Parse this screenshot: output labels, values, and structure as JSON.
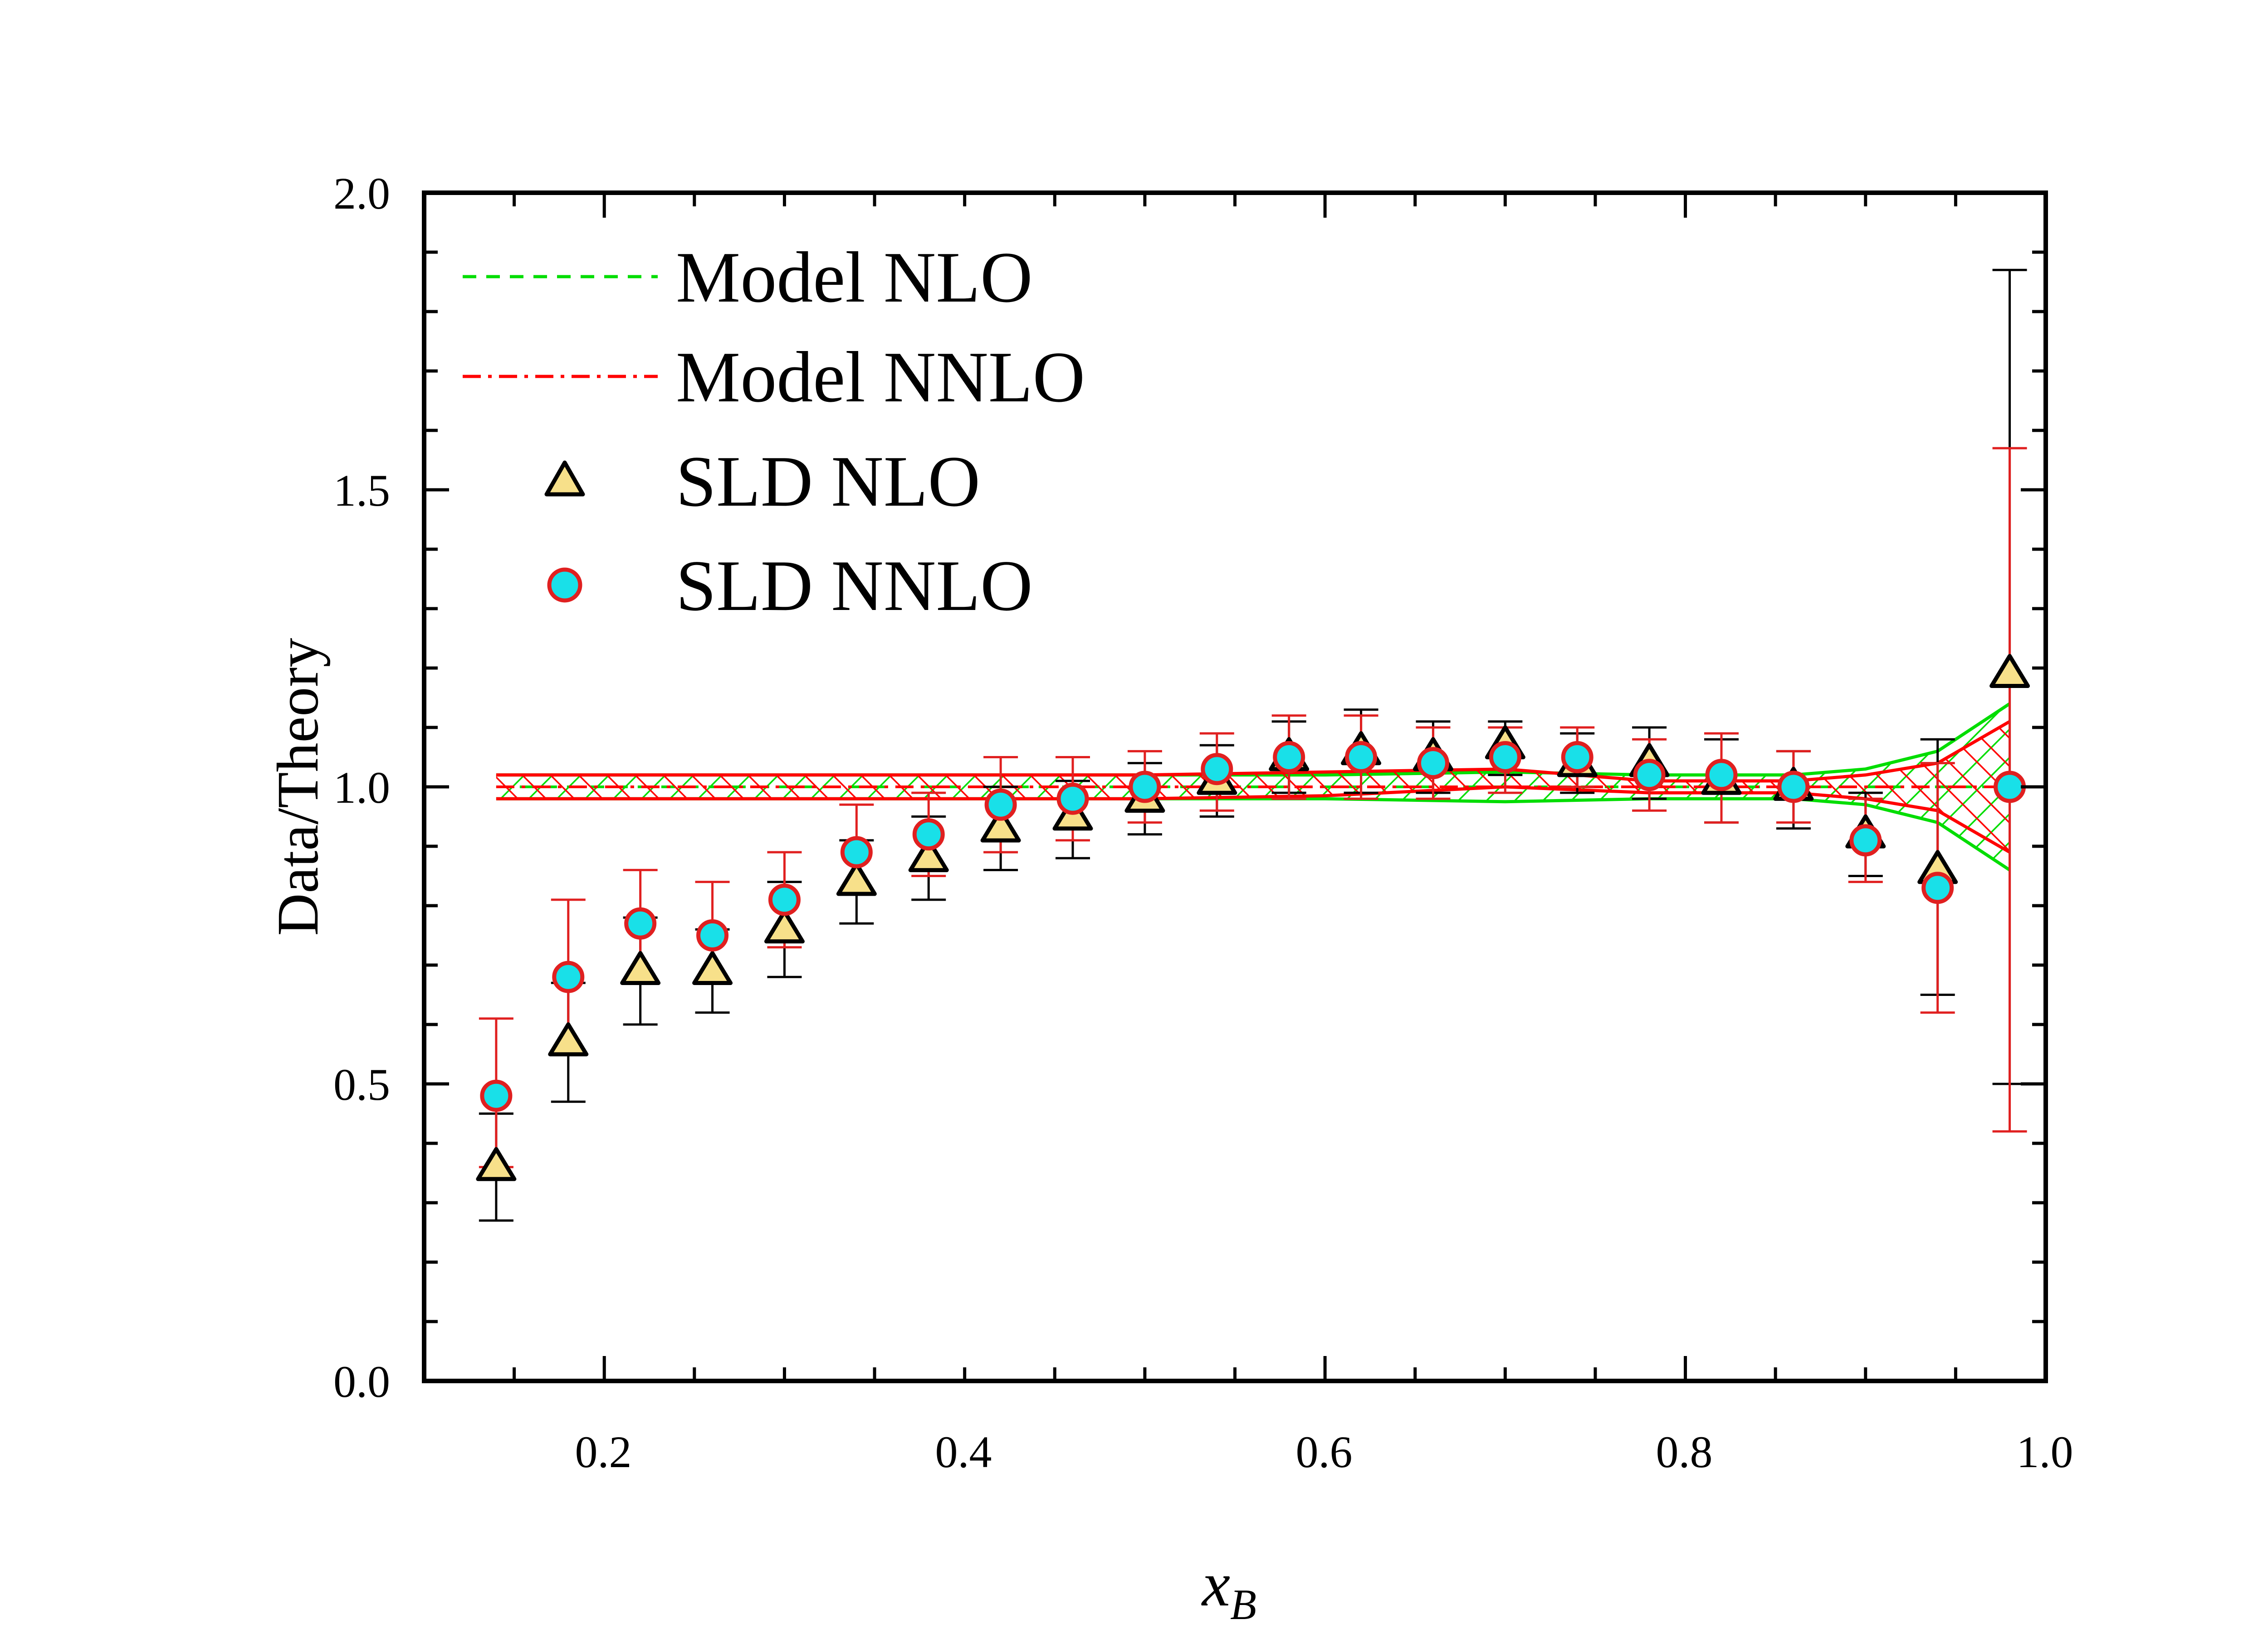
{
  "chart_data": {
    "type": "scatter",
    "xlabel": "x",
    "xlabel_sub": "B",
    "ylabel": "Data/Theory",
    "xlim": [
      0.1,
      1.0
    ],
    "ylim": [
      0.0,
      2.0
    ],
    "xticks": [
      0.2,
      0.4,
      0.6,
      0.8,
      1.0
    ],
    "xtick_labels": [
      "0.2",
      "0.4",
      "0.6",
      "0.8",
      "1.0"
    ],
    "yticks": [
      0.0,
      0.5,
      1.0,
      1.5,
      2.0
    ],
    "ytick_labels": [
      "0.0",
      "0.5",
      "1.0",
      "1.5",
      "2.0"
    ],
    "legend": [
      "Model NLO",
      "Model NNLO",
      "SLD NLO",
      "SLD NNLO"
    ],
    "legend_position": "top-left",
    "colors": {
      "nlo_band": "#00dd00",
      "nnlo_band": "#ff0000",
      "nlo_marker_fill": "#f7e08a",
      "nlo_marker_edge": "#000000",
      "nnlo_marker_fill": "#19e0e8",
      "nnlo_marker_edge": "#e02020",
      "nlo_error": "#000000",
      "nnlo_error": "#e02020"
    },
    "x": [
      0.14,
      0.18,
      0.22,
      0.26,
      0.3,
      0.34,
      0.38,
      0.42,
      0.46,
      0.5,
      0.54,
      0.58,
      0.62,
      0.66,
      0.7,
      0.74,
      0.78,
      0.82,
      0.86,
      0.9,
      0.94,
      0.98
    ],
    "series": [
      {
        "name": "SLD NLO",
        "values": [
          0.36,
          0.57,
          0.69,
          0.69,
          0.76,
          0.84,
          0.88,
          0.93,
          0.95,
          0.98,
          1.01,
          1.05,
          1.06,
          1.05,
          1.07,
          1.04,
          1.04,
          1.01,
          1.0,
          0.92,
          0.86,
          1.19
        ],
        "err_low": [
          0.27,
          0.47,
          0.6,
          0.62,
          0.68,
          0.77,
          0.81,
          0.86,
          0.88,
          0.92,
          0.95,
          0.99,
          0.99,
          0.99,
          1.02,
          0.99,
          0.98,
          0.94,
          0.93,
          0.85,
          0.65,
          0.5
        ],
        "err_high": [
          0.45,
          0.67,
          0.78,
          0.76,
          0.84,
          0.91,
          0.95,
          1.0,
          1.01,
          1.04,
          1.07,
          1.11,
          1.13,
          1.11,
          1.11,
          1.09,
          1.1,
          1.08,
          1.06,
          0.99,
          1.08,
          1.87
        ]
      },
      {
        "name": "SLD NNLO",
        "values": [
          0.48,
          0.68,
          0.77,
          0.75,
          0.81,
          0.89,
          0.92,
          0.97,
          0.98,
          1.0,
          1.03,
          1.05,
          1.05,
          1.04,
          1.05,
          1.05,
          1.02,
          1.02,
          1.0,
          0.91,
          0.83,
          1.0
        ],
        "err_low": [
          0.36,
          0.55,
          0.67,
          0.67,
          0.73,
          0.82,
          0.85,
          0.89,
          0.91,
          0.94,
          0.96,
          0.98,
          0.98,
          0.98,
          0.99,
          1.0,
          0.96,
          0.94,
          0.94,
          0.84,
          0.62,
          0.42
        ],
        "err_high": [
          0.61,
          0.81,
          0.86,
          0.84,
          0.89,
          0.97,
          0.99,
          1.05,
          1.05,
          1.06,
          1.09,
          1.12,
          1.12,
          1.1,
          1.1,
          1.1,
          1.08,
          1.09,
          1.06,
          0.98,
          1.04,
          1.57
        ]
      }
    ],
    "bands": [
      {
        "name": "Model NLO",
        "x": [
          0.14,
          0.3,
          0.5,
          0.6,
          0.7,
          0.78,
          0.86,
          0.9,
          0.94,
          0.98
        ],
        "center": [
          1.0,
          1.0,
          1.0,
          1.0,
          1.0,
          1.0,
          1.0,
          1.0,
          1.0,
          1.0
        ],
        "upper": [
          1.02,
          1.02,
          1.02,
          1.02,
          1.025,
          1.02,
          1.02,
          1.03,
          1.06,
          1.14
        ],
        "lower": [
          0.98,
          0.98,
          0.98,
          0.98,
          0.975,
          0.98,
          0.98,
          0.97,
          0.94,
          0.86
        ]
      },
      {
        "name": "Model NNLO",
        "x": [
          0.14,
          0.3,
          0.5,
          0.6,
          0.7,
          0.78,
          0.86,
          0.9,
          0.94,
          0.98
        ],
        "center": [
          1.0,
          1.0,
          1.0,
          1.0,
          1.0,
          1.0,
          1.0,
          1.0,
          1.0,
          1.0
        ],
        "upper": [
          1.02,
          1.02,
          1.02,
          1.025,
          1.03,
          1.01,
          1.01,
          1.02,
          1.04,
          1.11
        ],
        "lower": [
          0.98,
          0.98,
          0.98,
          0.985,
          1.0,
          0.99,
          0.99,
          0.98,
          0.96,
          0.89
        ]
      }
    ]
  }
}
